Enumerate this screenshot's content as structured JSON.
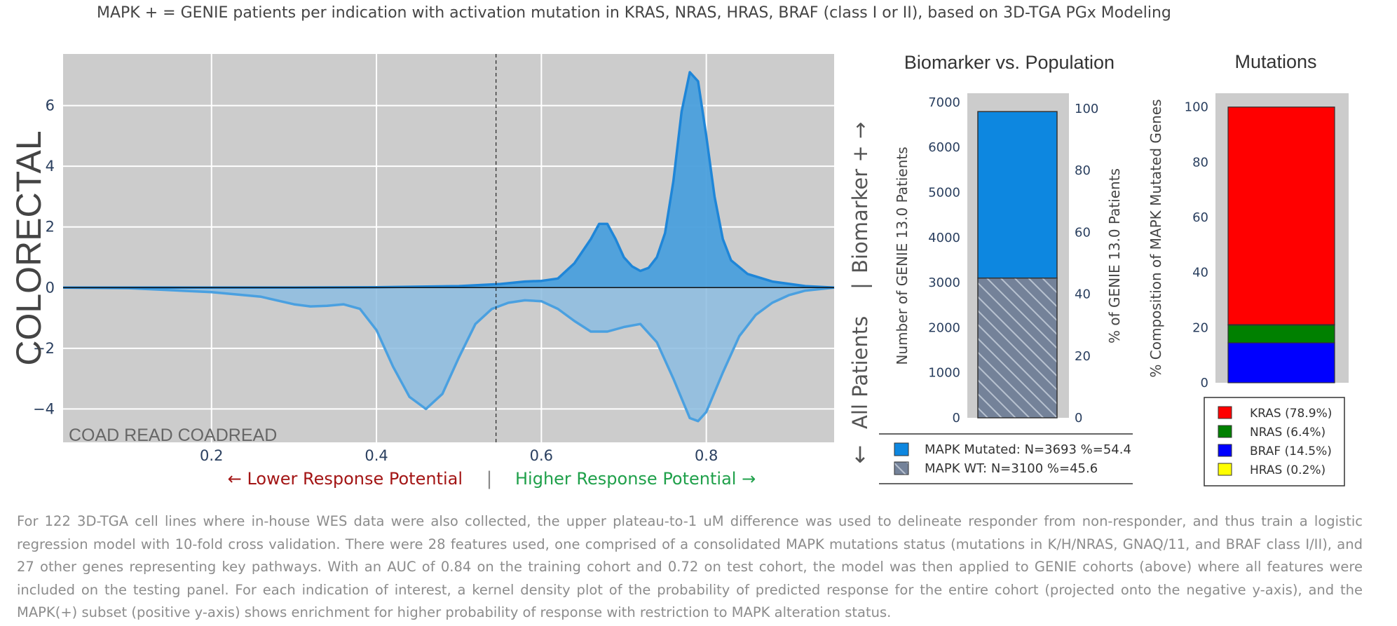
{
  "title": "MAPK + = GENIE patients per indication with activation mutation in KRAS, NRAS, HRAS, BRAF (class I or II), based on 3D-TGA PGx Modeling",
  "chart_data": [
    {
      "type": "area",
      "name": "kde",
      "ylabel": "COLORECTAL",
      "annotation": "COAD READ COADREAD",
      "xlim": [
        0.02,
        0.955
      ],
      "ylim": [
        -5.1,
        7.7
      ],
      "xticks": [
        0.2,
        0.4,
        0.6,
        0.8
      ],
      "yticks": [
        -4,
        -2,
        0,
        2,
        4,
        6
      ],
      "xtick_labels": [
        "0.2",
        "0.4",
        "0.6",
        "0.8"
      ],
      "ytick_labels": [
        "−4",
        "−2",
        "0",
        "2",
        "4",
        "6"
      ],
      "threshold": 0.545,
      "series": [
        {
          "name": "MAPK(+) subset (positive y-axis)",
          "color": "#4a9fdc",
          "x": [
            0.02,
            0.1,
            0.2,
            0.3,
            0.4,
            0.5,
            0.55,
            0.58,
            0.6,
            0.62,
            0.64,
            0.66,
            0.67,
            0.68,
            0.69,
            0.7,
            0.71,
            0.72,
            0.73,
            0.74,
            0.75,
            0.76,
            0.77,
            0.78,
            0.79,
            0.8,
            0.81,
            0.82,
            0.83,
            0.85,
            0.88,
            0.92,
            0.955
          ],
          "y": [
            0,
            0,
            0,
            0,
            0.01,
            0.05,
            0.12,
            0.2,
            0.22,
            0.3,
            0.8,
            1.6,
            2.1,
            2.1,
            1.6,
            1.0,
            0.7,
            0.55,
            0.65,
            1.0,
            1.8,
            3.5,
            5.8,
            7.1,
            6.8,
            5.0,
            3.0,
            1.6,
            0.9,
            0.45,
            0.2,
            0.05,
            0
          ]
        },
        {
          "name": "Entire cohort (negative y-axis)",
          "color": "#8cbce0",
          "x": [
            0.02,
            0.1,
            0.2,
            0.26,
            0.3,
            0.32,
            0.34,
            0.36,
            0.38,
            0.4,
            0.42,
            0.44,
            0.46,
            0.48,
            0.5,
            0.52,
            0.54,
            0.56,
            0.58,
            0.6,
            0.62,
            0.64,
            0.66,
            0.68,
            0.7,
            0.72,
            0.74,
            0.76,
            0.78,
            0.79,
            0.8,
            0.82,
            0.84,
            0.86,
            0.88,
            0.9,
            0.92,
            0.955
          ],
          "y": [
            0,
            -0.02,
            -0.15,
            -0.3,
            -0.55,
            -0.62,
            -0.6,
            -0.55,
            -0.7,
            -1.4,
            -2.6,
            -3.6,
            -4.0,
            -3.5,
            -2.3,
            -1.2,
            -0.7,
            -0.5,
            -0.42,
            -0.45,
            -0.7,
            -1.1,
            -1.45,
            -1.45,
            -1.3,
            -1.2,
            -1.8,
            -3.0,
            -4.3,
            -4.4,
            -4.1,
            -2.8,
            -1.6,
            -0.9,
            -0.5,
            -0.25,
            -0.1,
            0
          ]
        }
      ]
    },
    {
      "type": "bar",
      "name": "biomarker",
      "title": "Biomarker vs. Population",
      "ylabel": "Number of GENIE 13.0 Patients",
      "ylabel_right": "% of GENIE 13.0 Patients",
      "ylim": [
        0,
        7200
      ],
      "ylim_right": [
        0,
        105
      ],
      "yticks": [
        0,
        1000,
        2000,
        3000,
        4000,
        5000,
        6000,
        7000
      ],
      "yticks_right": [
        0,
        20,
        40,
        60,
        80,
        100
      ],
      "ytick_labels": [
        "0",
        "1000",
        "2000",
        "3000",
        "4000",
        "5000",
        "6000",
        "7000"
      ],
      "ytick_labels_right": [
        "0",
        "20",
        "40",
        "60",
        "80",
        "100"
      ],
      "series": [
        {
          "name": "MAPK WT",
          "value": 3100,
          "pct": 45.6,
          "color": "#748299",
          "pattern": "hatch"
        },
        {
          "name": "MAPK Mutated",
          "value": 3693,
          "pct": 54.4,
          "color": "#0d87e0"
        }
      ],
      "legend": [
        "MAPK Mutated: N=3693 %=54.4",
        "MAPK WT: N=3100 %=45.6"
      ]
    },
    {
      "type": "bar",
      "name": "mutations",
      "title": "Mutations",
      "ylabel": "% Composition of MAPK Mutated Genes",
      "ylim": [
        0,
        105
      ],
      "yticks": [
        0,
        20,
        40,
        60,
        80,
        100
      ],
      "ytick_labels": [
        "0",
        "20",
        "40",
        "60",
        "80",
        "100"
      ],
      "stack_order": [
        "BRAF",
        "NRAS",
        "HRAS",
        "KRAS"
      ],
      "series": [
        {
          "name": "KRAS",
          "value": 78.9,
          "color": "#ff0000"
        },
        {
          "name": "NRAS",
          "value": 6.4,
          "color": "#008000"
        },
        {
          "name": "BRAF",
          "value": 14.5,
          "color": "#0000ff"
        },
        {
          "name": "HRAS",
          "value": 0.2,
          "color": "#ffff00"
        }
      ],
      "legend": [
        "KRAS (78.9%)",
        "NRAS (6.4%)",
        "BRAF (14.5%)",
        "HRAS (0.2%)"
      ]
    }
  ],
  "response": {
    "lower": "← Lower Response Potential",
    "separator": "|",
    "higher": "Higher Response Potential →",
    "lower_color": "#a31515",
    "higher_color": "#1fa04a"
  },
  "side_label": {
    "top": "Biomarker + →",
    "divider": "|",
    "bottom": "All Patients",
    "down_arrow": "↓"
  },
  "footer": "For 122 3D-TGA cell lines where in-house WES data were also collected, the upper plateau-to-1 uM difference was used to delineate responder from non-responder, and thus train a logistic regression model with 10-fold cross validation. There were 28 features used, one comprised of a consolidated MAPK mutations status (mutations in K/H/NRAS, GNAQ/11, and BRAF class I/II), and 27 other genes representing key pathways. With an AUC of 0.84 on the training cohort and 0.72 on test cohort, the model was then applied to GENIE cohorts (above) where all features were included on the testing panel. For each indication of interest, a kernel density plot of the probability of predicted response for the entire cohort (projected onto the negative y-axis), and the MAPK(+) subset (positive y-axis) shows enrichment for higher probability of response with restriction to MAPK alteration status."
}
